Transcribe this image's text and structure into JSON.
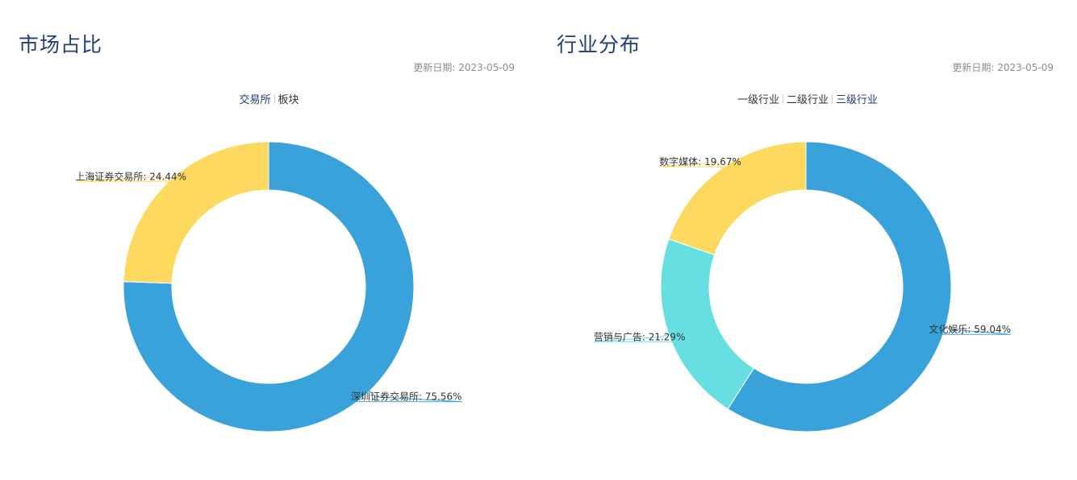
{
  "panels": [
    {
      "title": "市场占比",
      "date_label": "更新日期:",
      "date_value": "2023-05-09",
      "tabs": [
        "交易所",
        "板块"
      ],
      "active_tab": 0
    },
    {
      "title": "行业分布",
      "date_label": "更新日期:",
      "date_value": "2023-05-09",
      "tabs": [
        "一级行业",
        "二级行业",
        "三级行业"
      ],
      "active_tab": 2
    }
  ],
  "colors": {
    "blue": "#3aa2da",
    "yellow": "#fdd95f",
    "cyan": "#67dfe2",
    "title": "#1f3d78"
  },
  "chart_data": [
    {
      "type": "pie",
      "donut": true,
      "title": "市场占比",
      "categories": [
        "深圳证券交易所",
        "上海证券交易所"
      ],
      "values": [
        75.56,
        24.44
      ],
      "labels": [
        "深圳证券交易所: 75.56%",
        "上海证券交易所: 24.44%"
      ],
      "colors": [
        "#3aa2da",
        "#fdd95f"
      ]
    },
    {
      "type": "pie",
      "donut": true,
      "title": "行业分布",
      "categories": [
        "文化娱乐",
        "营销与广告",
        "数字媒体"
      ],
      "values": [
        59.04,
        21.29,
        19.67
      ],
      "labels": [
        "文化娱乐: 59.04%",
        "营销与广告: 21.29%",
        "数字媒体: 19.67%"
      ],
      "colors": [
        "#3aa2da",
        "#67dfe2",
        "#fdd95f"
      ]
    }
  ]
}
